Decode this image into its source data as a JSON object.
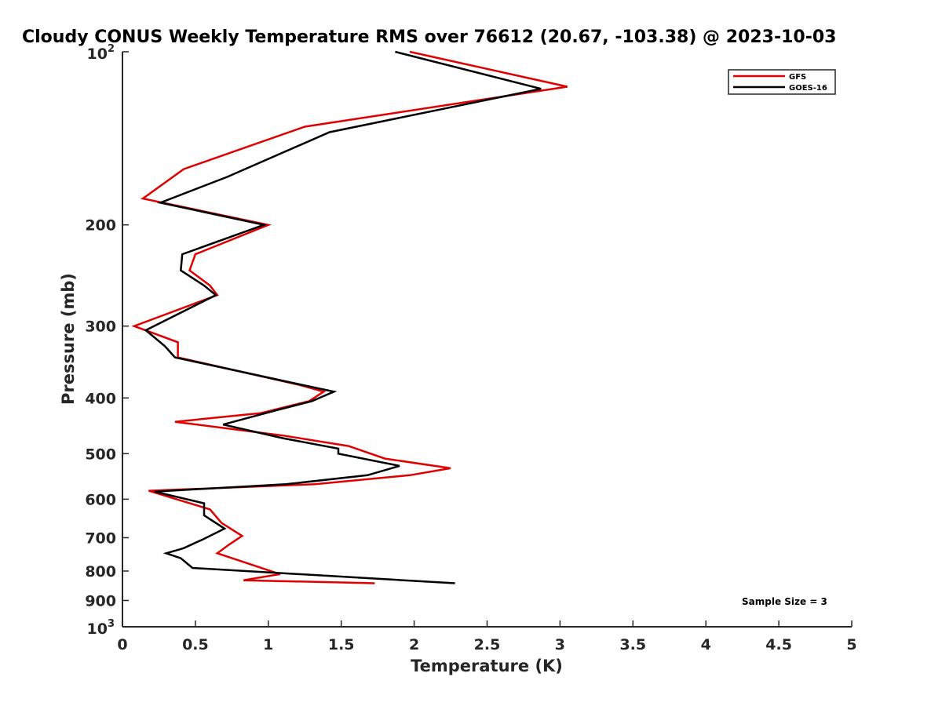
{
  "chart_data": {
    "type": "line",
    "title": "Cloudy CONUS Weekly Temperature RMS over 76612 (20.67, -103.38) @ 2023-10-03",
    "xlabel": "Temperature (K)",
    "ylabel": "Pressure (mb)",
    "xlim": [
      0,
      5
    ],
    "ylim": [
      100,
      1000
    ],
    "yscale": "log",
    "y_reversed": true,
    "xticks": [
      "0",
      "0.5",
      "1",
      "1.5",
      "2",
      "2.5",
      "3",
      "3.5",
      "4",
      "4.5",
      "5"
    ],
    "yticks": [
      {
        "value": 100,
        "base": "10",
        "exp": "2"
      },
      {
        "value": 200,
        "label": "200"
      },
      {
        "value": 300,
        "label": "300"
      },
      {
        "value": 400,
        "label": "400"
      },
      {
        "value": 500,
        "label": "500"
      },
      {
        "value": 600,
        "label": "600"
      },
      {
        "value": 700,
        "label": "700"
      },
      {
        "value": 800,
        "label": "800"
      },
      {
        "value": 900,
        "label": "900"
      },
      {
        "value": 1000,
        "base": "10",
        "exp": "3"
      }
    ],
    "legend_position": "top-right",
    "annotation": "Sample Size = 3",
    "series": [
      {
        "name": "GFS",
        "color": "#e00000",
        "points": [
          [
            1.97,
            100
          ],
          [
            3.05,
            115
          ],
          [
            1.25,
            135
          ],
          [
            0.42,
            160
          ],
          [
            0.14,
            180
          ],
          [
            1.0,
            200
          ],
          [
            0.5,
            225
          ],
          [
            0.46,
            240
          ],
          [
            0.6,
            255
          ],
          [
            0.65,
            265
          ],
          [
            0.08,
            300
          ],
          [
            0.38,
            320
          ],
          [
            0.38,
            340
          ],
          [
            1.22,
            380
          ],
          [
            1.38,
            390
          ],
          [
            1.28,
            405
          ],
          [
            0.95,
            425
          ],
          [
            0.36,
            440
          ],
          [
            1.1,
            465
          ],
          [
            1.55,
            485
          ],
          [
            1.8,
            510
          ],
          [
            2.25,
            530
          ],
          [
            1.97,
            545
          ],
          [
            1.32,
            565
          ],
          [
            0.18,
            580
          ],
          [
            0.6,
            625
          ],
          [
            0.68,
            660
          ],
          [
            0.82,
            695
          ],
          [
            0.73,
            720
          ],
          [
            0.65,
            745
          ],
          [
            0.82,
            770
          ],
          [
            1.08,
            810
          ],
          [
            0.83,
            830
          ],
          [
            1.73,
            840
          ]
        ]
      },
      {
        "name": "GOES-16",
        "color": "#000000",
        "points": [
          [
            1.87,
            100
          ],
          [
            2.87,
            116
          ],
          [
            1.42,
            138
          ],
          [
            0.72,
            165
          ],
          [
            0.26,
            183
          ],
          [
            0.97,
            200
          ],
          [
            0.41,
            225
          ],
          [
            0.4,
            240
          ],
          [
            0.56,
            255
          ],
          [
            0.64,
            265
          ],
          [
            0.16,
            305
          ],
          [
            0.29,
            325
          ],
          [
            0.36,
            340
          ],
          [
            1.24,
            380
          ],
          [
            1.45,
            390
          ],
          [
            1.3,
            405
          ],
          [
            1.06,
            420
          ],
          [
            0.69,
            445
          ],
          [
            1.1,
            470
          ],
          [
            1.48,
            490
          ],
          [
            1.48,
            500
          ],
          [
            1.9,
            525
          ],
          [
            1.68,
            545
          ],
          [
            1.12,
            565
          ],
          [
            0.22,
            582
          ],
          [
            0.56,
            610
          ],
          [
            0.56,
            640
          ],
          [
            0.7,
            675
          ],
          [
            0.55,
            705
          ],
          [
            0.42,
            730
          ],
          [
            0.3,
            745
          ],
          [
            0.4,
            760
          ],
          [
            0.48,
            790
          ],
          [
            2.28,
            840
          ]
        ]
      }
    ]
  }
}
